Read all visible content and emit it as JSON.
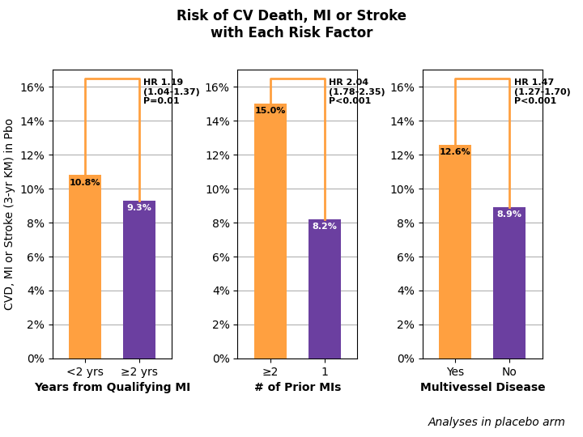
{
  "title": "Risk of CV Death, MI or Stroke",
  "subtitle": "with Each Risk Factor",
  "annotations": [
    "Analyses in placebo arm"
  ],
  "chart_data": [
    {
      "type": "bar",
      "xlabel": "Years from Qualifying MI",
      "ylabel": "CVD, MI or Stroke (3-yr KM) in Pbo",
      "categories": [
        "<2 yrs",
        "≥2 yrs"
      ],
      "values": [
        0.108,
        0.093
      ],
      "value_labels": [
        "10.8%",
        "9.3%"
      ],
      "colors": [
        "#FFA040",
        "#6B3FA0"
      ],
      "ylim": [
        0,
        0.17
      ],
      "yticks": [
        {
          "value": 0,
          "label": "0%"
        },
        {
          "value": 0.02,
          "label": "2%"
        },
        {
          "value": 0.04,
          "label": "4%"
        },
        {
          "value": 0.06,
          "label": "6%"
        },
        {
          "value": 0.08,
          "label": "8%"
        },
        {
          "value": 0.1,
          "label": "10%"
        },
        {
          "value": 0.12,
          "label": "12%"
        },
        {
          "value": 0.14,
          "label": "14%"
        },
        {
          "value": 0.16,
          "label": "16%"
        }
      ],
      "grid": true,
      "data_labels": true,
      "annotations": [
        "HR 1.19\n(1.04-1.37)\nP=0.01"
      ]
    },
    {
      "type": "bar",
      "xlabel": "# of Prior MIs",
      "categories": [
        "≥2",
        "1"
      ],
      "values": [
        0.15,
        0.082
      ],
      "value_labels": [
        "15.0%",
        "8.2%"
      ],
      "colors": [
        "#FFA040",
        "#6B3FA0"
      ],
      "ylim": [
        0,
        0.17
      ],
      "yticks": [
        {
          "value": 0,
          "label": "0%"
        },
        {
          "value": 0.02,
          "label": "2%"
        },
        {
          "value": 0.04,
          "label": "4%"
        },
        {
          "value": 0.06,
          "label": "6%"
        },
        {
          "value": 0.08,
          "label": "8%"
        },
        {
          "value": 0.1,
          "label": "10%"
        },
        {
          "value": 0.12,
          "label": "12%"
        },
        {
          "value": 0.14,
          "label": "14%"
        },
        {
          "value": 0.16,
          "label": "16%"
        }
      ],
      "grid": true,
      "data_labels": true,
      "annotations": [
        "HR 2.04\n(1.78-2.35)\nP<0.001"
      ]
    },
    {
      "type": "bar",
      "xlabel": "Multivessel Disease",
      "categories": [
        "Yes",
        "No"
      ],
      "values": [
        0.126,
        0.089
      ],
      "value_labels": [
        "12.6%",
        "8.9%"
      ],
      "colors": [
        "#FFA040",
        "#6B3FA0"
      ],
      "ylim": [
        0,
        0.17
      ],
      "yticks": [
        {
          "value": 0,
          "label": "0%"
        },
        {
          "value": 0.02,
          "label": "2%"
        },
        {
          "value": 0.04,
          "label": "4%"
        },
        {
          "value": 0.06,
          "label": "6%"
        },
        {
          "value": 0.08,
          "label": "8%"
        },
        {
          "value": 0.1,
          "label": "10%"
        },
        {
          "value": 0.12,
          "label": "12%"
        },
        {
          "value": 0.14,
          "label": "14%"
        },
        {
          "value": 0.16,
          "label": "16%"
        }
      ],
      "grid": true,
      "data_labels": true,
      "annotations": [
        "HR 1.47\n(1.27-1.70)\nP<0.001"
      ]
    }
  ]
}
